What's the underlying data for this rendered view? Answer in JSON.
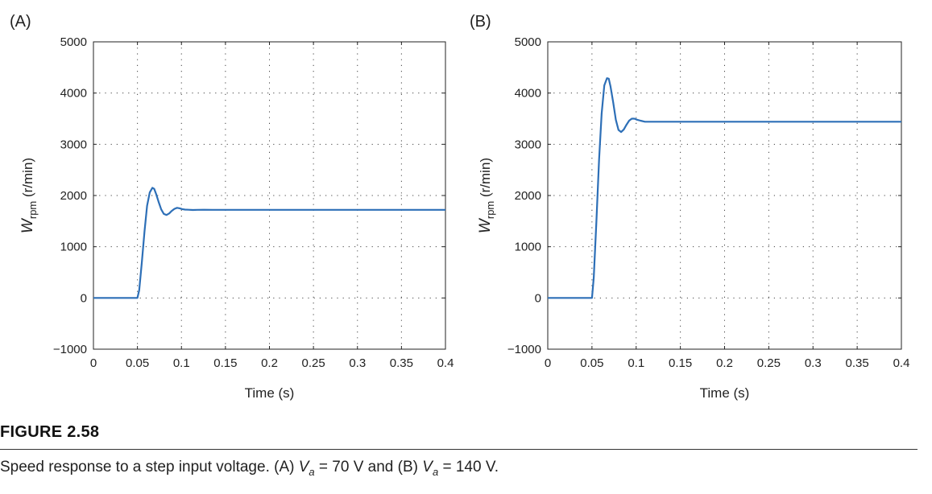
{
  "figure": {
    "label": "FIGURE 2.58",
    "caption_parts": {
      "lead": "Speed response to a step input voltage. (A) ",
      "var_main": "V",
      "var_sub": "a",
      "value_a": " = 70 V and (B) ",
      "value_b": " = 140 V."
    }
  },
  "chart_data": [
    {
      "type": "line",
      "panel_label": "(A)",
      "xlabel": "Time (s)",
      "ylabel": {
        "main": "W",
        "sub": "rpm",
        "unit": " (r/min)"
      },
      "xlim": [
        0,
        0.4
      ],
      "ylim": [
        -1000,
        5000
      ],
      "xticks": [
        0,
        0.05,
        0.1,
        0.15,
        0.2,
        0.25,
        0.3,
        0.35,
        0.4
      ],
      "xtick_labels": [
        "0",
        "0.05",
        "0.1",
        "0.15",
        "0.2",
        "0.25",
        "0.3",
        "0.35",
        "0.4"
      ],
      "yticks": [
        -1000,
        0,
        1000,
        2000,
        3000,
        4000,
        5000
      ],
      "ytick_labels": [
        "−1000",
        "0",
        "1000",
        "2000",
        "3000",
        "4000",
        "5000"
      ],
      "grid": true,
      "line_color": "#2d6fb7",
      "series": [
        {
          "x": [
            0,
            0.05,
            0.052,
            0.055,
            0.058,
            0.061,
            0.064,
            0.067,
            0.069,
            0.071,
            0.074,
            0.077,
            0.08,
            0.083,
            0.086,
            0.089,
            0.092,
            0.095,
            0.098,
            0.101,
            0.104,
            0.108,
            0.113,
            0.118,
            0.125,
            0.135,
            0.15,
            0.2,
            0.3,
            0.4
          ],
          "y": [
            0,
            0,
            150,
            700,
            1300,
            1800,
            2060,
            2150,
            2130,
            2040,
            1880,
            1730,
            1640,
            1620,
            1650,
            1700,
            1740,
            1760,
            1750,
            1735,
            1725,
            1722,
            1718,
            1720,
            1722,
            1720,
            1720,
            1720,
            1720,
            1720
          ]
        }
      ]
    },
    {
      "type": "line",
      "panel_label": "(B)",
      "xlabel": "Time (s)",
      "ylabel": {
        "main": "W",
        "sub": "rpm",
        "unit": " (r/min)"
      },
      "xlim": [
        0,
        0.4
      ],
      "ylim": [
        -1000,
        5000
      ],
      "xticks": [
        0,
        0.05,
        0.1,
        0.15,
        0.2,
        0.25,
        0.3,
        0.35,
        0.4
      ],
      "xtick_labels": [
        "0",
        "0.05",
        "0.1",
        "0.15",
        "0.2",
        "0.25",
        "0.3",
        "0.35",
        "0.4"
      ],
      "yticks": [
        -1000,
        0,
        1000,
        2000,
        3000,
        4000,
        5000
      ],
      "ytick_labels": [
        "−1000",
        "0",
        "1000",
        "2000",
        "3000",
        "4000",
        "5000"
      ],
      "grid": true,
      "line_color": "#2d6fb7",
      "series": [
        {
          "x": [
            0,
            0.05,
            0.052,
            0.055,
            0.058,
            0.061,
            0.064,
            0.067,
            0.069,
            0.071,
            0.074,
            0.077,
            0.08,
            0.083,
            0.086,
            0.089,
            0.092,
            0.095,
            0.098,
            0.101,
            0.105,
            0.11,
            0.115,
            0.12,
            0.13,
            0.15,
            0.2,
            0.3,
            0.4
          ],
          "y": [
            0,
            0,
            400,
            1500,
            2700,
            3600,
            4150,
            4290,
            4280,
            4130,
            3820,
            3480,
            3280,
            3240,
            3290,
            3380,
            3460,
            3500,
            3500,
            3480,
            3460,
            3440,
            3440,
            3440,
            3440,
            3440,
            3440,
            3440,
            3440
          ]
        }
      ]
    }
  ]
}
